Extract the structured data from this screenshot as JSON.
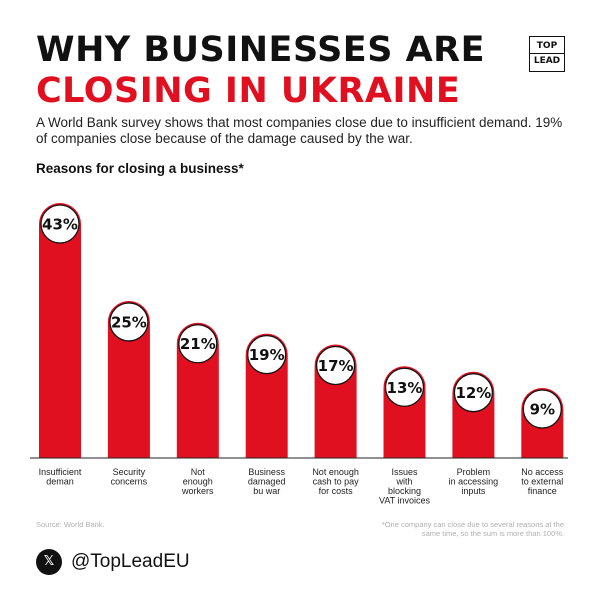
{
  "header": {
    "title_line1": "WHY BUSINESSES ARE",
    "title_line2": "CLOSING IN UKRAINE",
    "logo_top": "TOP",
    "logo_bottom": "LEAD"
  },
  "subtitle": "A World Bank survey shows that most companies close due to insufficient demand. 19% of companies close because of the damage caused by the war.",
  "footer": {
    "source": "Source: World Bank.",
    "footnote": "*One company can close due to several reasons at the same time, so the sum is more than 100%.",
    "social_icon": "x-logo-icon",
    "social_icon_glyph": "𝕏",
    "handle": "@TopLeadEU"
  },
  "colors": {
    "accent": "#e01020",
    "bar": "#e01020",
    "text": "#111111"
  },
  "chart_data": {
    "type": "bar",
    "title": "Reasons for closing a business*",
    "categories": [
      [
        "Insufficient",
        "deman"
      ],
      [
        "Security",
        "concerns"
      ],
      [
        "Not",
        "enough",
        "workers"
      ],
      [
        "Business",
        "damaged",
        "bu war"
      ],
      [
        "Not enough",
        "cash to pay",
        "for costs"
      ],
      [
        "Issues",
        "with",
        "blocking",
        "VAT invoices"
      ],
      [
        "Problem",
        "in accessing",
        "inputs"
      ],
      [
        "No access",
        "to external",
        "finance"
      ]
    ],
    "values": [
      43,
      25,
      21,
      19,
      17,
      13,
      12,
      9
    ],
    "value_labels": [
      "43%",
      "25%",
      "21%",
      "19%",
      "17%",
      "13%",
      "12%",
      "9%"
    ],
    "unit": "%",
    "ylim": [
      0,
      43
    ],
    "grid": false,
    "legend": "none"
  }
}
